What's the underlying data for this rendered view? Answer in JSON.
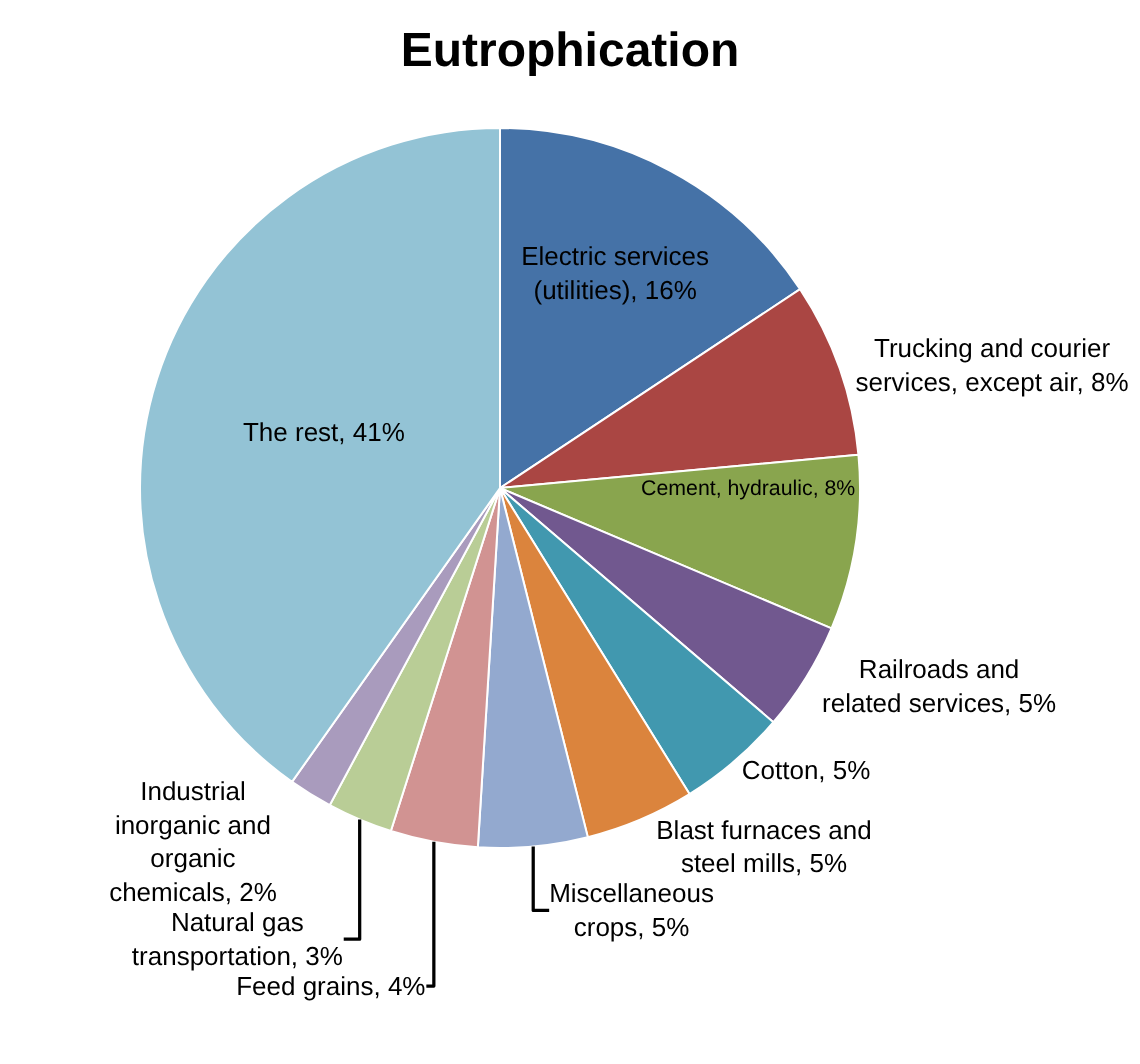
{
  "chart_data": {
    "type": "pie",
    "title": "Eutrophication",
    "categories": [
      "Electric services (utilities)",
      "Trucking and courier services, except air",
      "Cement, hydraulic",
      "Railroads and related services",
      "Cotton",
      "Blast furnaces and steel mills",
      "Miscellaneous crops",
      "Feed grains",
      "Natural gas transportation",
      "Industrial inorganic and organic chemicals",
      "The rest"
    ],
    "values": [
      16,
      8,
      8,
      5,
      5,
      5,
      5,
      4,
      3,
      2,
      41
    ],
    "value_labels": [
      "16%",
      "8%",
      "8%",
      "5%",
      "5%",
      "5%",
      "5%",
      "4%",
      "3%",
      "2%",
      "41%"
    ],
    "colors": [
      "#4572a7",
      "#aa4643",
      "#89a54e",
      "#71588f",
      "#4198af",
      "#db843d",
      "#93a9cf",
      "#d19392",
      "#b9cd96",
      "#a99bbd",
      "#93c3d5"
    ],
    "legend": false
  }
}
